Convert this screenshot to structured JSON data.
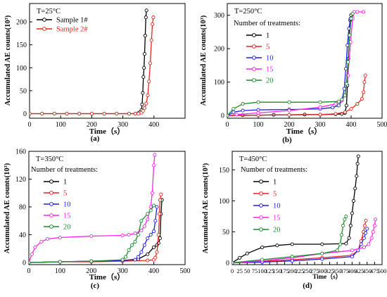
{
  "chart_data": [
    {
      "type": "line",
      "panel_label": "(a)",
      "temp_label": "T=25°C",
      "legend_title": "",
      "xlabel": "Time（s）",
      "ylabel": "Accumulated AE counts(10³)",
      "xlim": [
        0,
        500
      ],
      "ylim": [
        -10,
        240
      ],
      "xticks": [
        0,
        100,
        200,
        300,
        400
      ],
      "yticks": [
        0,
        50,
        100,
        150,
        200
      ],
      "series": [
        {
          "name": "Sample 1#",
          "color": "#000000",
          "marker": "circle",
          "x": [
            0,
            40,
            80,
            120,
            160,
            200,
            240,
            280,
            320,
            340,
            350,
            355,
            360,
            362,
            364,
            366,
            368,
            370,
            372,
            374,
            376
          ],
          "y": [
            0,
            0,
            0,
            0,
            0,
            0,
            0,
            0,
            0,
            0,
            1,
            3,
            8,
            20,
            45,
            80,
            100,
            130,
            170,
            210,
            225
          ]
        },
        {
          "name": "Sample 2#",
          "color": "#e8251f",
          "marker": "circle",
          "x": [
            0,
            40,
            80,
            120,
            160,
            200,
            240,
            280,
            320,
            340,
            350,
            360,
            365,
            370,
            375,
            380,
            384,
            388,
            392,
            395,
            398
          ],
          "y": [
            0,
            0,
            0,
            0,
            0,
            0,
            0,
            0,
            0,
            0,
            0,
            2,
            6,
            12,
            22,
            40,
            70,
            110,
            160,
            195,
            210
          ]
        }
      ]
    },
    {
      "type": "line",
      "panel_label": "(b)",
      "temp_label": "T=250°C",
      "legend_title": "Number of treatments:",
      "xlabel": "Time（s）",
      "ylabel": "Accumulated AE counts(10³)",
      "xlim": [
        0,
        500
      ],
      "ylim": [
        -8,
        335
      ],
      "xticks": [
        0,
        100,
        200,
        300,
        400,
        500
      ],
      "yticks": [
        0,
        100,
        200,
        300
      ],
      "series": [
        {
          "name": "1",
          "color": "#000000",
          "marker": "circle",
          "x": [
            0,
            50,
            100,
            150,
            200,
            250,
            300,
            350,
            370,
            380,
            385,
            388,
            391,
            394,
            397,
            400
          ],
          "y": [
            0,
            1,
            1,
            2,
            2,
            3,
            3,
            4,
            5,
            8,
            30,
            90,
            170,
            240,
            285,
            300
          ]
        },
        {
          "name": "5",
          "color": "#e8251f",
          "marker": "circle",
          "x": [
            0,
            100,
            200,
            300,
            350,
            380,
            400,
            420,
            435,
            440,
            443,
            446
          ],
          "y": [
            0,
            1,
            2,
            3,
            5,
            10,
            20,
            35,
            50,
            70,
            100,
            120
          ]
        },
        {
          "name": "10",
          "color": "#1f1fe0",
          "marker": "circle",
          "x": [
            0,
            20,
            50,
            100,
            200,
            300,
            340,
            360,
            370,
            378,
            383,
            388,
            393,
            398
          ],
          "y": [
            0,
            10,
            15,
            17,
            18,
            20,
            24,
            30,
            45,
            80,
            140,
            210,
            260,
            290
          ]
        },
        {
          "name": "15",
          "color": "#ff22ee",
          "marker": "circle",
          "x": [
            0,
            30,
            100,
            200,
            300,
            350,
            370,
            380,
            390,
            398,
            405,
            410,
            420,
            440
          ],
          "y": [
            0,
            3,
            8,
            15,
            25,
            35,
            45,
            60,
            120,
            220,
            290,
            310,
            310,
            310
          ]
        },
        {
          "name": "20",
          "color": "#1e8a2e",
          "marker": "circle",
          "x": [
            0,
            20,
            50,
            100,
            200,
            300,
            360,
            370,
            380,
            385,
            390,
            395,
            400,
            405
          ],
          "y": [
            0,
            20,
            35,
            40,
            40,
            40,
            42,
            48,
            60,
            95,
            160,
            240,
            290,
            305
          ]
        }
      ]
    },
    {
      "type": "line",
      "panel_label": "(c)",
      "temp_label": "T=350°C",
      "legend_title": "Number of treatments:",
      "xlabel": "Time（s）",
      "ylabel": "Accumulated AE counts(10³)",
      "xlim": [
        0,
        500
      ],
      "ylim": [
        -3,
        160
      ],
      "xticks": [
        0,
        100,
        200,
        300,
        400,
        500
      ],
      "yticks": [
        0,
        40,
        80,
        120,
        160
      ],
      "series": [
        {
          "name": "1",
          "color": "#000000",
          "marker": "circle",
          "x": [
            0,
            100,
            200,
            300,
            350,
            380,
            400,
            410,
            415,
            420,
            423,
            426
          ],
          "y": [
            0,
            1,
            2,
            3,
            5,
            12,
            22,
            25,
            28,
            35,
            70,
            90
          ]
        },
        {
          "name": "5",
          "color": "#e8251f",
          "marker": "circle",
          "x": [
            0,
            100,
            200,
            300,
            380,
            400,
            405,
            410,
            415,
            418,
            420,
            423
          ],
          "y": [
            0,
            1,
            1,
            2,
            3,
            4,
            7,
            15,
            40,
            70,
            90,
            98
          ]
        },
        {
          "name": "10",
          "color": "#1f1fe0",
          "marker": "circle",
          "x": [
            0,
            100,
            200,
            300,
            340,
            350,
            360,
            370,
            380,
            390,
            400,
            405,
            410
          ],
          "y": [
            0,
            1,
            2,
            3,
            4,
            8,
            15,
            25,
            35,
            40,
            45,
            60,
            80
          ]
        },
        {
          "name": "15",
          "color": "#ff22ee",
          "marker": "circle",
          "x": [
            0,
            10,
            20,
            40,
            60,
            100,
            200,
            300,
            320,
            340,
            360,
            370,
            380,
            390,
            395,
            400,
            403
          ],
          "y": [
            0,
            12,
            22,
            30,
            34,
            36,
            38,
            39,
            40,
            42,
            46,
            52,
            62,
            80,
            100,
            140,
            155
          ]
        },
        {
          "name": "20",
          "color": "#1e8a2e",
          "marker": "circle",
          "x": [
            0,
            100,
            200,
            300,
            310,
            320,
            330,
            340,
            350,
            360,
            380,
            390,
            400
          ],
          "y": [
            0,
            1,
            2,
            4,
            8,
            18,
            25,
            30,
            40,
            60,
            70,
            75,
            82
          ]
        }
      ]
    },
    {
      "type": "line",
      "panel_label": "(d)",
      "temp_label": "T=450°C",
      "legend_title": "Number of treatments:",
      "xlabel": "Time（s）",
      "ylabel": "Accumulated AE counts(10³)",
      "xlim": [
        0,
        500
      ],
      "ylim": [
        -3,
        180
      ],
      "xticks": [
        0,
        25,
        50,
        75,
        100,
        125,
        150,
        175,
        200,
        225,
        250,
        275,
        300,
        325,
        350,
        375,
        400,
        425,
        450,
        475,
        500
      ],
      "yticks": [
        0,
        50,
        100,
        150
      ],
      "series": [
        {
          "name": "1",
          "color": "#000000",
          "marker": "circle",
          "x": [
            0,
            25,
            50,
            100,
            150,
            200,
            300,
            380,
            390,
            395,
            400,
            405,
            410,
            415,
            418,
            421
          ],
          "y": [
            0,
            8,
            15,
            25,
            28,
            30,
            30,
            31,
            40,
            60,
            80,
            100,
            120,
            140,
            160,
            172
          ]
        },
        {
          "name": "5",
          "color": "#e8251f",
          "marker": "circle",
          "x": [
            0,
            100,
            200,
            300,
            400,
            420,
            430,
            438,
            442,
            446
          ],
          "y": [
            0,
            2,
            5,
            8,
            12,
            20,
            35,
            50,
            60,
            68
          ]
        },
        {
          "name": "10",
          "color": "#1f1fe0",
          "marker": "circle",
          "x": [
            0,
            100,
            200,
            300,
            400,
            420,
            430,
            440,
            445,
            450
          ],
          "y": [
            0,
            1,
            3,
            6,
            10,
            20,
            30,
            40,
            48,
            55
          ]
        },
        {
          "name": "15",
          "color": "#ff22ee",
          "marker": "circle",
          "x": [
            0,
            100,
            200,
            300,
            400,
            440,
            455,
            465,
            470,
            475,
            478
          ],
          "y": [
            0,
            3,
            8,
            15,
            20,
            25,
            30,
            40,
            50,
            60,
            70
          ]
        },
        {
          "name": "20",
          "color": "#1e8a2e",
          "marker": "circle",
          "x": [
            0,
            100,
            200,
            300,
            350,
            360,
            365,
            370,
            375,
            380
          ],
          "y": [
            0,
            5,
            10,
            15,
            20,
            30,
            45,
            60,
            70,
            75
          ]
        }
      ]
    }
  ]
}
